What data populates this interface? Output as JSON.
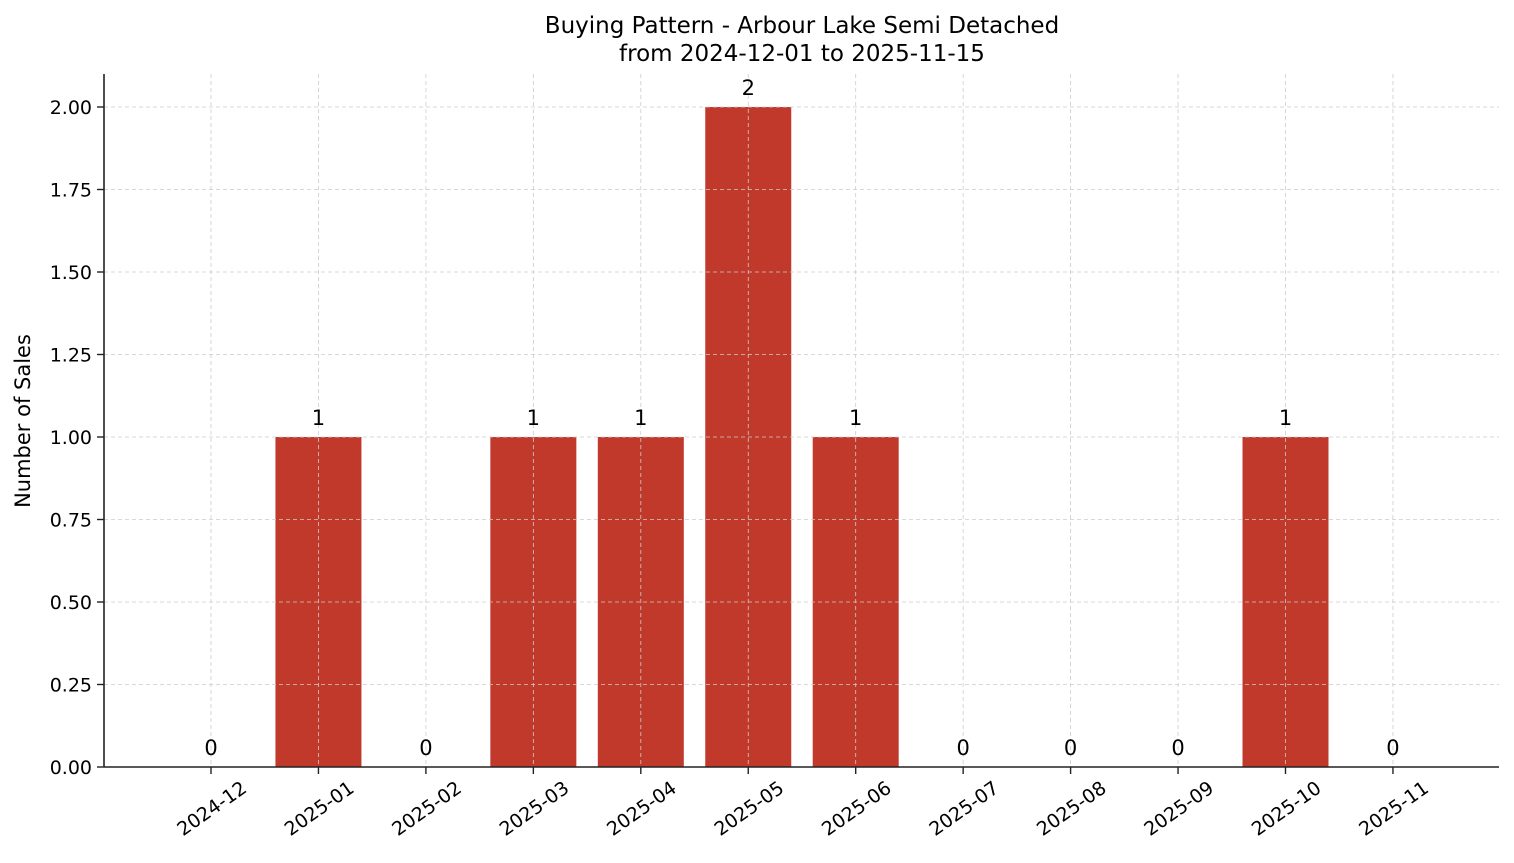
{
  "chart_data": {
    "type": "bar",
    "title": "Buying Pattern - Arbour Lake Semi Detached",
    "subtitle": "from 2024-12-01 to 2025-11-15",
    "xlabel": "",
    "ylabel": "Number of Sales",
    "categories": [
      "2024-12",
      "2025-01",
      "2025-02",
      "2025-03",
      "2025-04",
      "2025-05",
      "2025-06",
      "2025-07",
      "2025-08",
      "2025-09",
      "2025-10",
      "2025-11"
    ],
    "values": [
      0,
      1,
      0,
      1,
      1,
      2,
      1,
      0,
      0,
      0,
      1,
      0
    ],
    "data_labels": [
      "0",
      "1",
      "0",
      "1",
      "1",
      "2",
      "1",
      "0",
      "0",
      "0",
      "1",
      "0"
    ],
    "ylim": [
      0,
      2.1
    ],
    "yticks": [
      "0.00",
      "0.25",
      "0.50",
      "0.75",
      "1.00",
      "1.25",
      "1.50",
      "1.75",
      "2.00"
    ],
    "grid": true,
    "legend": null,
    "bar_color": "#c0392b"
  }
}
